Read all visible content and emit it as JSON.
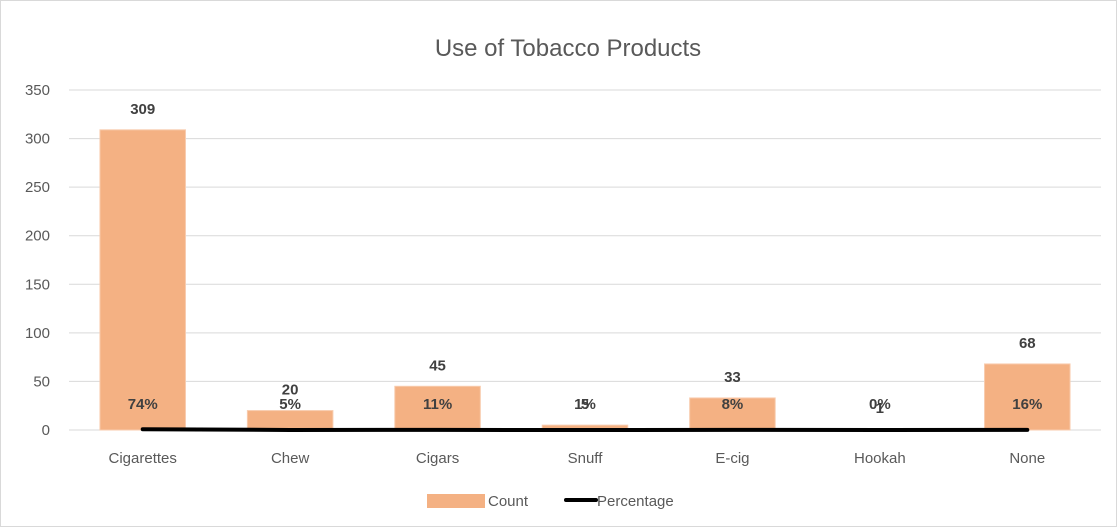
{
  "chart_data": {
    "type": "bar",
    "title": "Use of Tobacco Products",
    "categories": [
      "Cigarettes",
      "Chew",
      "Cigars",
      "Snuff",
      "E-cig",
      "Hookah",
      "None"
    ],
    "series": [
      {
        "name": "Count",
        "type": "bar",
        "color": "#f4b183",
        "values": [
          309,
          20,
          45,
          5,
          33,
          1,
          68
        ]
      },
      {
        "name": "Percentage",
        "type": "line",
        "color": "#000000",
        "values": [
          0.74,
          0.05,
          0.11,
          0.01,
          0.08,
          0.0,
          0.16
        ],
        "labels": [
          "74%",
          "5%",
          "11%",
          "1%",
          "8%",
          "0%",
          "16%"
        ]
      }
    ],
    "value_labels": [
      "309",
      "20",
      "45",
      "5",
      "33",
      "1",
      "68"
    ],
    "ylim": [
      0,
      350
    ],
    "yticks": [
      "0",
      "50",
      "100",
      "150",
      "200",
      "250",
      "300",
      "350"
    ],
    "grid": true,
    "legend_position": "bottom"
  }
}
